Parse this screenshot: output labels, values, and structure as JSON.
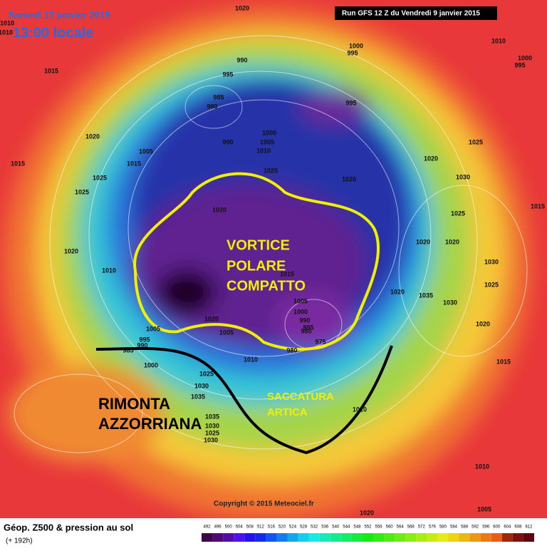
{
  "header": {
    "date": "Samedi 17 janvier 2015",
    "time": "13:00 locale",
    "run": "Run GFS 12 Z du Vendredi 9 janvier 2015"
  },
  "annotations": {
    "vortex": [
      "VORTICE",
      "POLARE",
      "COMPATTO"
    ],
    "ridge": [
      "RIMONTA",
      "AZZORRIANA"
    ],
    "trough": [
      "SACCATURA",
      "ARTICA"
    ]
  },
  "isobar_labels": [
    1020,
    1010,
    1010,
    1015,
    990,
    995,
    985,
    980,
    990,
    1000,
    1005,
    1010,
    1025,
    995,
    1000,
    995,
    1010,
    1000,
    995,
    1020,
    1005,
    1015,
    1015,
    1025,
    1025,
    1020,
    1020,
    1025,
    1030,
    1025,
    1020,
    1020,
    1010,
    1015,
    1020,
    1020,
    1030,
    1025,
    1035,
    1030,
    1020,
    1005,
    1000,
    990,
    995,
    985,
    975,
    980,
    1020,
    1005,
    1005,
    995,
    990,
    985,
    1000,
    1010,
    1025,
    1030,
    1035,
    1035,
    1030,
    1025,
    1030,
    1010,
    1020,
    1015,
    1015,
    1010,
    1005,
    1020
  ],
  "footer": {
    "title": "Géop. Z500 & pression au sol",
    "lead": "(+ 192h)",
    "copyright": "Copyright © 2015 Meteociel.fr"
  },
  "scale": {
    "labels": [
      492,
      496,
      500,
      504,
      508,
      512,
      516,
      520,
      524,
      528,
      532,
      536,
      540,
      544,
      548,
      552,
      556,
      560,
      564,
      568,
      572,
      576,
      580,
      584,
      588,
      592,
      596,
      600,
      604,
      608,
      612
    ]
  }
}
